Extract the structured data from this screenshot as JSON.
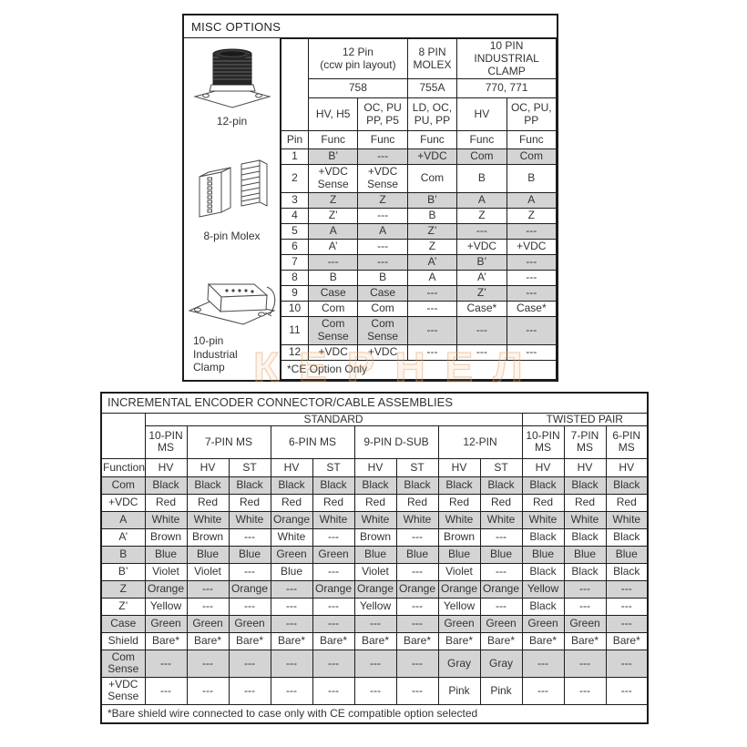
{
  "watermark": "КЕРНЕЛ",
  "misc_table": {
    "title": "MISC OPTIONS",
    "figures": [
      {
        "label": "12-pin"
      },
      {
        "label": "8-pin Molex"
      },
      {
        "label": "10-pin\nIndustrial\nClamp"
      }
    ],
    "col_groups": [
      {
        "name": "12 Pin\n(ccw pin layout)",
        "model": "758"
      },
      {
        "name": "8 PIN\nMOLEX",
        "model": "755A"
      },
      {
        "name": "10 PIN INDUSTRIAL\nCLAMP",
        "model": "770, 771"
      }
    ],
    "variant_headers": [
      "HV, H5",
      "OC, PU\nPP, P5",
      "LD, OC,\nPU, PP",
      "HV",
      "OC, PU,\nPP"
    ],
    "pin_header": "Pin",
    "func_header": "Func",
    "rows": [
      {
        "pin": "1",
        "cells": [
          "B’",
          "---",
          "+VDC",
          "Com",
          "Com"
        ]
      },
      {
        "pin": "2",
        "cells": [
          "+VDC\nSense",
          "+VDC\nSense",
          "Com",
          "B",
          "B"
        ]
      },
      {
        "pin": "3",
        "cells": [
          "Z",
          "Z",
          "B’",
          "A",
          "A"
        ]
      },
      {
        "pin": "4",
        "cells": [
          "Z’",
          "---",
          "B",
          "Z",
          "Z"
        ]
      },
      {
        "pin": "5",
        "cells": [
          "A",
          "A",
          "Z’",
          "---",
          "---"
        ]
      },
      {
        "pin": "6",
        "cells": [
          "A’",
          "---",
          "Z",
          "+VDC",
          "+VDC"
        ]
      },
      {
        "pin": "7",
        "cells": [
          "---",
          "---",
          "A’",
          "B’",
          "---"
        ]
      },
      {
        "pin": "8",
        "cells": [
          "B",
          "B",
          "A",
          "A’",
          "---"
        ]
      },
      {
        "pin": "9",
        "cells": [
          "Case",
          "Case",
          "---",
          "Z’",
          "---"
        ]
      },
      {
        "pin": "10",
        "cells": [
          "Com",
          "Com",
          "---",
          "Case*",
          "Case*"
        ]
      },
      {
        "pin": "11",
        "cells": [
          "Com\nSense",
          "Com\nSense",
          "---",
          "---",
          "---"
        ]
      },
      {
        "pin": "12",
        "cells": [
          "+VDC",
          "+VDC",
          "---",
          "---",
          "---"
        ]
      }
    ],
    "footnote": "*CE Option Only"
  },
  "encoder_table": {
    "title": "INCREMENTAL ENCODER CONNECTOR/CABLE ASSEMBLIES",
    "groups": [
      {
        "label": "STANDARD",
        "span": 9
      },
      {
        "label": "TWISTED PAIR",
        "span": 3
      }
    ],
    "connectors": [
      {
        "label": "10-PIN\nMS",
        "span": 1
      },
      {
        "label": "7-PIN MS",
        "span": 2
      },
      {
        "label": "6-PIN MS",
        "span": 2
      },
      {
        "label": "9-PIN D-SUB",
        "span": 2
      },
      {
        "label": "12-PIN",
        "span": 2
      },
      {
        "label": "10-PIN\nMS",
        "span": 1
      },
      {
        "label": "7-PIN\nMS",
        "span": 1
      },
      {
        "label": "6-PIN\nMS",
        "span": 1
      }
    ],
    "function_header": "Function",
    "variants": [
      "HV",
      "HV",
      "ST",
      "HV",
      "ST",
      "HV",
      "ST",
      "HV",
      "ST",
      "HV",
      "HV",
      "HV"
    ],
    "rows": [
      {
        "function": "Com",
        "cells": [
          "Black",
          "Black",
          "Black",
          "Black",
          "Black",
          "Black",
          "Black",
          "Black",
          "Black",
          "Black",
          "Black",
          "Black"
        ]
      },
      {
        "function": "+VDC",
        "cells": [
          "Red",
          "Red",
          "Red",
          "Red",
          "Red",
          "Red",
          "Red",
          "Red",
          "Red",
          "Red",
          "Red",
          "Red"
        ]
      },
      {
        "function": "A",
        "cells": [
          "White",
          "White",
          "White",
          "Orange",
          "White",
          "White",
          "White",
          "White",
          "White",
          "White",
          "White",
          "White"
        ]
      },
      {
        "function": "A’",
        "cells": [
          "Brown",
          "Brown",
          "---",
          "White",
          "---",
          "Brown",
          "---",
          "Brown",
          "---",
          "Black",
          "Black",
          "Black"
        ]
      },
      {
        "function": "B",
        "cells": [
          "Blue",
          "Blue",
          "Blue",
          "Green",
          "Green",
          "Blue",
          "Blue",
          "Blue",
          "Blue",
          "Blue",
          "Blue",
          "Blue"
        ]
      },
      {
        "function": "B’",
        "cells": [
          "Violet",
          "Violet",
          "---",
          "Blue",
          "---",
          "Violet",
          "---",
          "Violet",
          "---",
          "Black",
          "Black",
          "Black"
        ]
      },
      {
        "function": "Z",
        "cells": [
          "Orange",
          "---",
          "Orange",
          "---",
          "Orange",
          "Orange",
          "Orange",
          "Orange",
          "Orange",
          "Yellow",
          "---",
          "---"
        ]
      },
      {
        "function": "Z’",
        "cells": [
          "Yellow",
          "---",
          "---",
          "---",
          "---",
          "Yellow",
          "---",
          "Yellow",
          "---",
          "Black",
          "---",
          "---"
        ]
      },
      {
        "function": "Case",
        "cells": [
          "Green",
          "Green",
          "Green",
          "---",
          "---",
          "---",
          "---",
          "Green",
          "Green",
          "Green",
          "Green",
          "---"
        ]
      },
      {
        "function": "Shield",
        "cells": [
          "Bare*",
          "Bare*",
          "Bare*",
          "Bare*",
          "Bare*",
          "Bare*",
          "Bare*",
          "Bare*",
          "Bare*",
          "Bare*",
          "Bare*",
          "Bare*"
        ]
      },
      {
        "function": "Com\nSense",
        "cells": [
          "---",
          "---",
          "---",
          "---",
          "---",
          "---",
          "---",
          "Gray",
          "Gray",
          "---",
          "---",
          "---"
        ]
      },
      {
        "function": "+VDC\nSense",
        "cells": [
          "---",
          "---",
          "---",
          "---",
          "---",
          "---",
          "---",
          "Pink",
          "Pink",
          "---",
          "---",
          "---"
        ]
      }
    ],
    "footnote": "*Bare shield wire connected to case only with CE compatible option selected"
  },
  "colors": {
    "row_shade": "#d4d4d4",
    "border": "#1c1c1c",
    "text": "#333333",
    "watermark_tint": "#e9a05f"
  }
}
